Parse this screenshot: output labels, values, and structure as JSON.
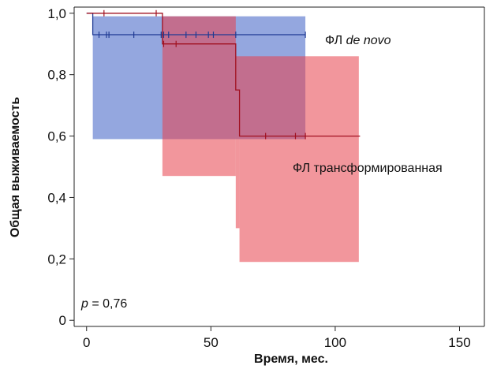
{
  "chart_data": {
    "type": "line",
    "subtype": "kaplan-meier",
    "xlabel": "Время, мес.",
    "ylabel": "Общая выживаемость",
    "xlim": [
      -5,
      160
    ],
    "ylim": [
      -0.02,
      1.02
    ],
    "x_ticks": [
      0,
      50,
      100,
      150
    ],
    "x_tick_labels": [
      "0",
      "50",
      "100",
      "150"
    ],
    "y_ticks": [
      0,
      0.2,
      0.4,
      0.6,
      0.8,
      1.0
    ],
    "y_tick_labels": [
      "0",
      "0,2",
      "0,4",
      "0,6",
      "0,8",
      "1,0"
    ],
    "series": [
      {
        "name": "ФЛ de novo",
        "label_prefix": "ФЛ ",
        "label_italic": "de novo",
        "color": "#1f3a93",
        "band_color": "#3d5fc4",
        "steps": [
          [
            0,
            1.0
          ],
          [
            2.5,
            1.0
          ],
          [
            2.5,
            0.93
          ],
          [
            88,
            0.93
          ]
        ],
        "censor_x": [
          5,
          8,
          9,
          19,
          30,
          31,
          33,
          40,
          44,
          49,
          51,
          60,
          88
        ],
        "censor_y": 0.93,
        "ci_band": [
          {
            "x0": 2.5,
            "x1": 88,
            "lo": 0.59,
            "hi": 0.99
          }
        ]
      },
      {
        "name": "ФЛ трансформированная",
        "label_prefix": "ФЛ трансформированная",
        "label_italic": "",
        "color": "#a01020",
        "band_color": "#e8404a",
        "steps": [
          [
            0,
            1.0
          ],
          [
            30.5,
            1.0
          ],
          [
            30.5,
            0.9
          ],
          [
            60,
            0.9
          ],
          [
            60,
            0.75
          ],
          [
            61.5,
            0.75
          ],
          [
            61.5,
            0.6
          ],
          [
            110,
            0.6
          ]
        ],
        "censor_x": [
          7,
          28,
          31,
          36,
          72,
          84,
          88
        ],
        "censor_y_by_x": [
          1.0,
          1.0,
          0.9,
          0.9,
          0.6,
          0.6,
          0.6
        ],
        "ci_band": [
          {
            "x0": 30.5,
            "x1": 60,
            "lo": 0.47,
            "hi": 0.99
          },
          {
            "x0": 60,
            "x1": 61.5,
            "lo": 0.3,
            "hi": 0.86
          },
          {
            "x0": 61.5,
            "x1": 109.5,
            "lo": 0.19,
            "hi": 0.86
          }
        ]
      }
    ],
    "annotation_p_symbol": "p",
    "annotation_p_rest": " = 0,76"
  }
}
